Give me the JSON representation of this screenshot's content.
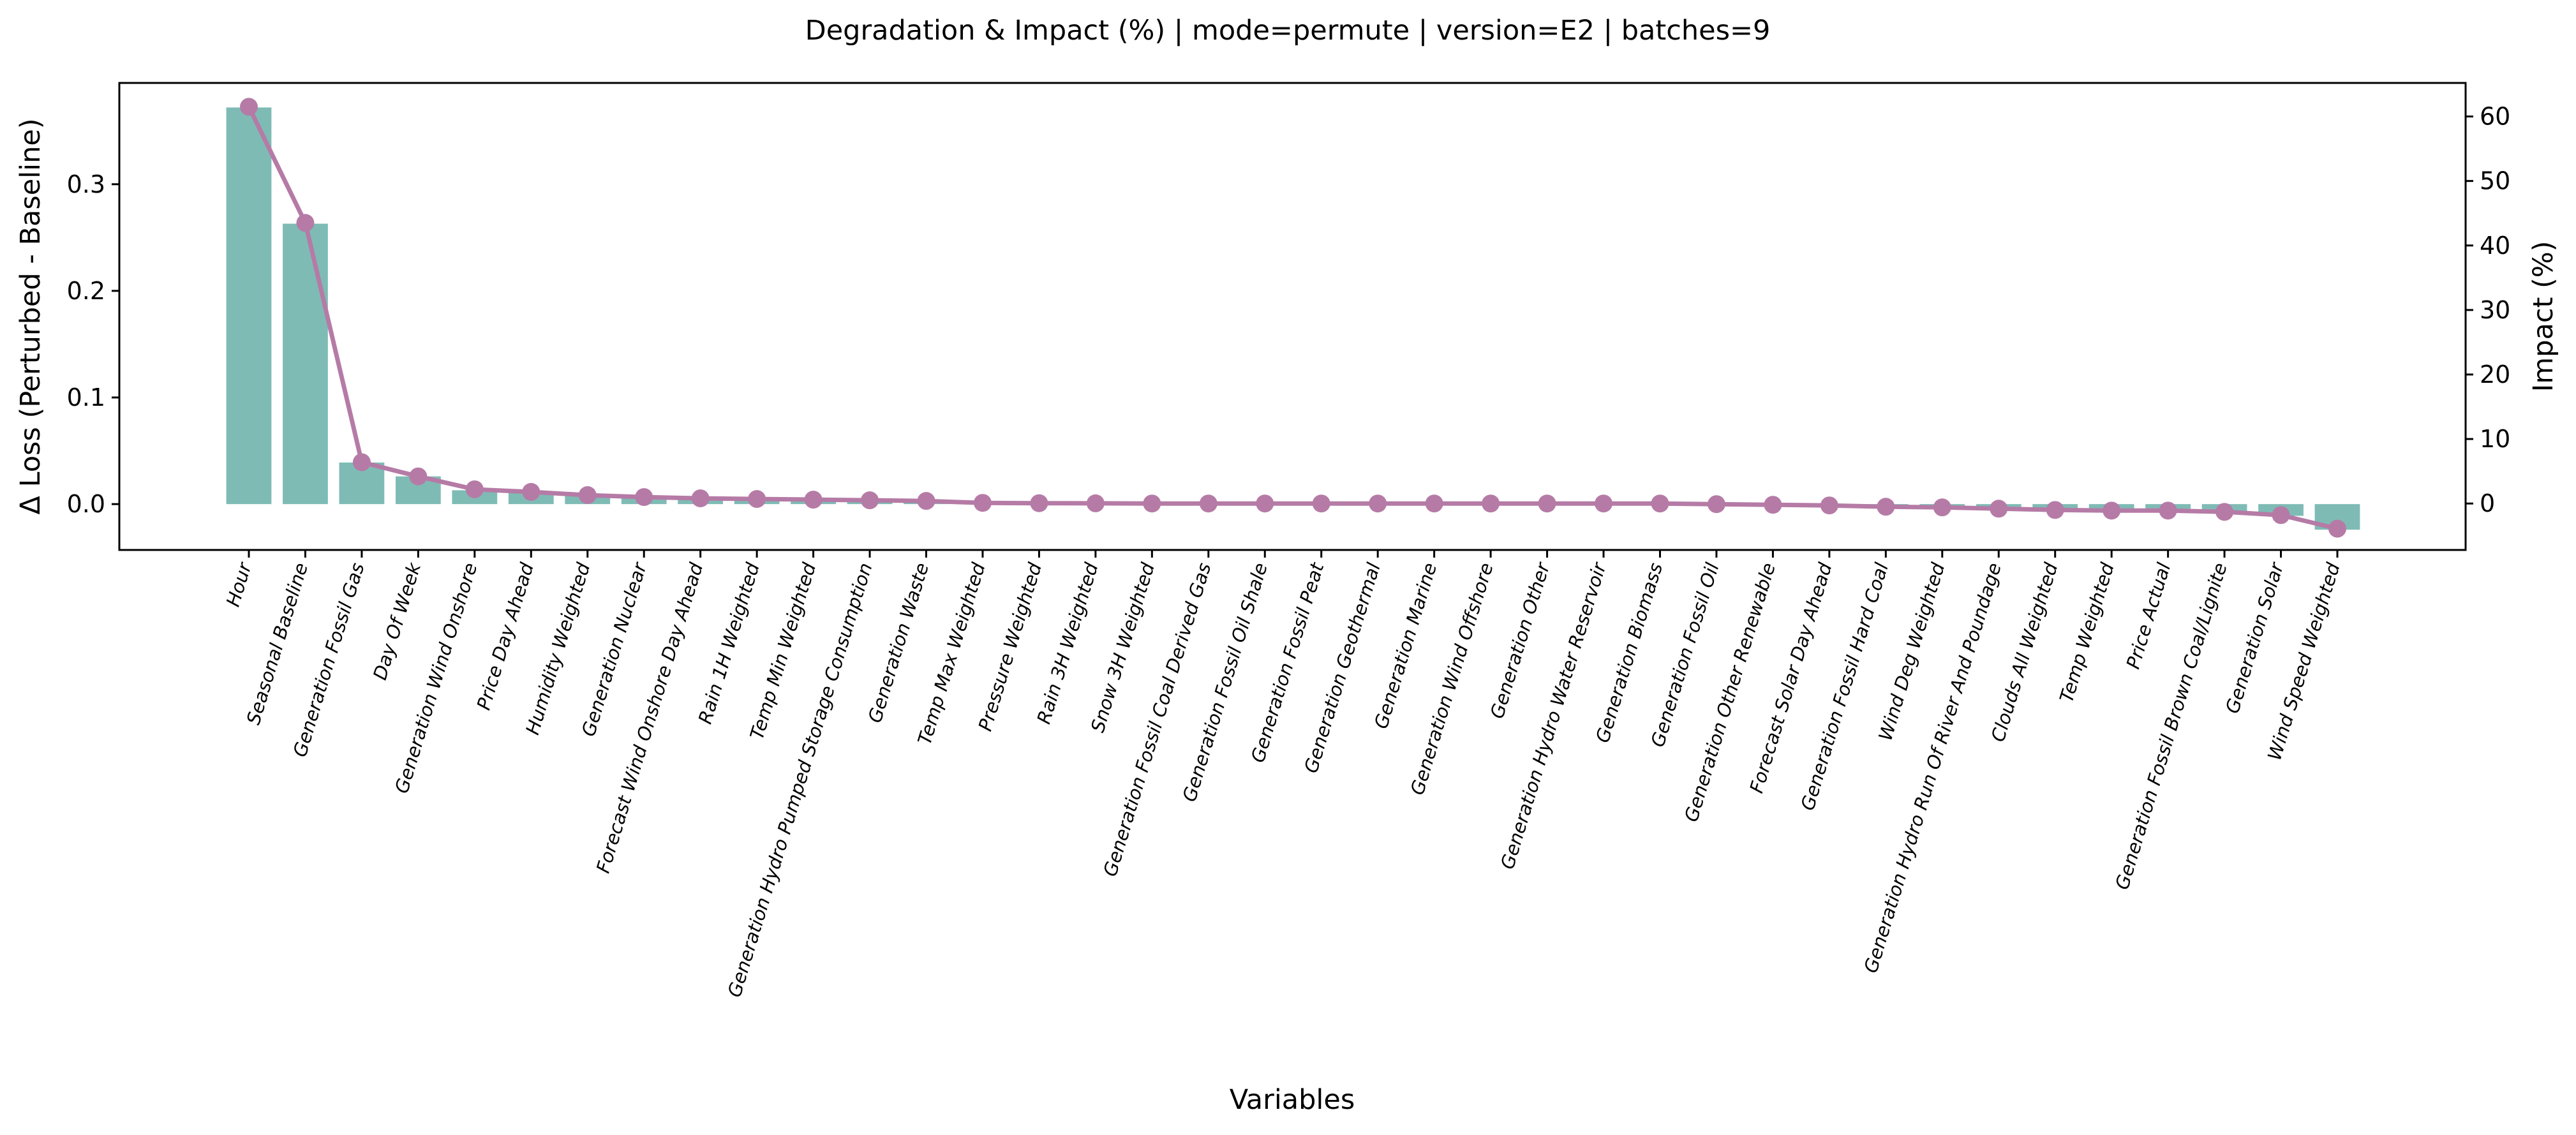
{
  "chart_data": {
    "type": "bar",
    "title": "Degradation & Impact (%) | mode=permute | version=E2 | batches=9",
    "xlabel": "Variables",
    "ylabel": "Δ Loss (Perturbed - Baseline)",
    "ylabel_right": "Impact (%)",
    "ylim": [
      -0.043,
      0.395
    ],
    "ylim_right": [
      -7.2,
      65.2
    ],
    "yticks": [
      0.0,
      0.1,
      0.2,
      0.3
    ],
    "yticks_right": [
      0,
      10,
      20,
      30,
      40,
      50,
      60
    ],
    "grid": false,
    "categories": [
      "Hour",
      "Seasonal Baseline",
      "Generation Fossil Gas",
      "Day Of Week",
      "Generation Wind Onshore",
      "Price Day Ahead",
      "Humidity Weighted",
      "Generation Nuclear",
      "Forecast Wind Onshore Day Ahead",
      "Rain 1H Weighted",
      "Temp Min Weighted",
      "Generation Hydro Pumped Storage Consumption",
      "Generation Waste",
      "Temp Max Weighted",
      "Pressure Weighted",
      "Rain 3H Weighted",
      "Snow 3H Weighted",
      "Generation Fossil Coal Derived Gas",
      "Generation Fossil Oil Shale",
      "Generation Fossil Peat",
      "Generation Geothermal",
      "Generation Marine",
      "Generation Wind Offshore",
      "Generation Other",
      "Generation Hydro Water Reservoir",
      "Generation Biomass",
      "Generation Fossil Oil",
      "Generation Other Renewable",
      "Forecast Solar Day Ahead",
      "Generation Fossil Hard Coal",
      "Wind Deg Weighted",
      "Generation Hydro Run Of River And Poundage",
      "Clouds All Weighted",
      "Temp Weighted",
      "Price Actual",
      "Generation Fossil Brown Coal/Lignite",
      "Generation Solar",
      "Wind Speed Weighted"
    ],
    "series": [
      {
        "axis": "left",
        "mark": "bar",
        "color": "#7fbbb5",
        "values": [
          0.372,
          0.263,
          0.039,
          0.026,
          0.013,
          0.011,
          0.008,
          0.006,
          0.005,
          0.004,
          0.004,
          0.003,
          0.002,
          0.0005,
          0.0003,
          0.0002,
          0.0,
          0.0,
          0.0,
          0.0,
          0.0,
          0.0,
          0.0,
          0.0,
          0.0,
          0.0,
          -0.0005,
          -0.001,
          -0.002,
          -0.003,
          -0.004,
          -0.005,
          -0.006,
          -0.007,
          -0.007,
          -0.008,
          -0.011,
          -0.024
        ]
      },
      {
        "axis": "right",
        "mark": "line",
        "color": "#b57ba6",
        "values": [
          61.5,
          43.5,
          6.4,
          4.2,
          2.2,
          1.8,
          1.3,
          1.0,
          0.8,
          0.7,
          0.6,
          0.5,
          0.4,
          0.1,
          0.05,
          0.03,
          0.0,
          0.0,
          0.0,
          0.0,
          0.0,
          0.0,
          0.0,
          0.0,
          0.0,
          0.0,
          -0.1,
          -0.2,
          -0.3,
          -0.5,
          -0.6,
          -0.8,
          -1.0,
          -1.1,
          -1.1,
          -1.3,
          -1.8,
          -3.9
        ]
      }
    ]
  }
}
